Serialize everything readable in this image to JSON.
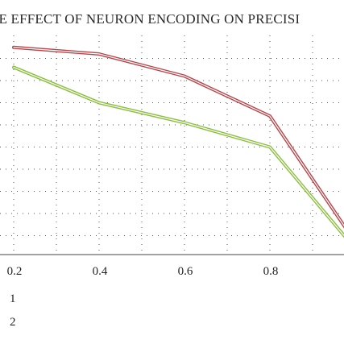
{
  "chart_data": {
    "type": "line",
    "title": "HE EFFECT OF NEURON ENCODING ON PRECISI",
    "xlabel": "",
    "ylabel": "",
    "x_ticks": [
      "0.2",
      "0.4",
      "0.6",
      "0.8"
    ],
    "x": [
      0.2,
      0.4,
      0.6,
      0.8,
      1.0
    ],
    "xlim": [
      0.2,
      1.0
    ],
    "ylim": [
      0,
      1
    ],
    "grid": true,
    "legend_placement": "bottom-left",
    "series": [
      {
        "name": "1",
        "color": "#b8454a",
        "values": [
          0.95,
          0.92,
          0.82,
          0.64,
          0.07
        ]
      },
      {
        "name": "2",
        "color": "#8cbf3f",
        "values": [
          0.86,
          0.7,
          0.61,
          0.5,
          0.04
        ]
      }
    ]
  }
}
